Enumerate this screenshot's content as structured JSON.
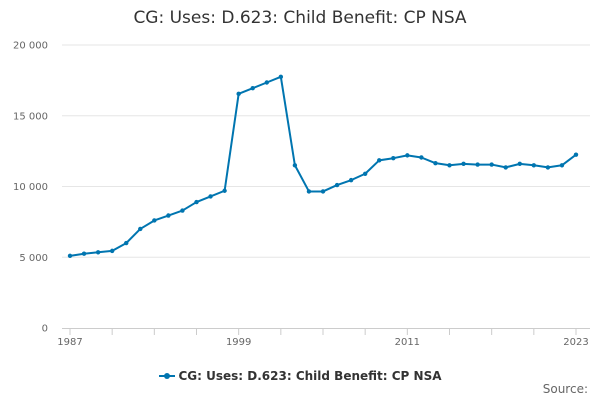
{
  "chart_data": {
    "type": "line",
    "title": "CG: Uses: D.623: Child Benefit: CP NSA",
    "xlabel": "",
    "ylabel": "",
    "x": [
      1987,
      1988,
      1989,
      1990,
      1991,
      1992,
      1993,
      1994,
      1995,
      1996,
      1997,
      1998,
      1999,
      2000,
      2001,
      2002,
      2003,
      2004,
      2005,
      2006,
      2007,
      2008,
      2009,
      2010,
      2011,
      2012,
      2013,
      2014,
      2015,
      2016,
      2017,
      2018,
      2019,
      2020,
      2021,
      2022,
      2023
    ],
    "series": [
      {
        "name": "CG: Uses: D.623: Child Benefit: CP NSA",
        "color": "#0075b0",
        "values": [
          5100,
          5250,
          5350,
          5450,
          6000,
          7000,
          7600,
          7950,
          8300,
          8900,
          9300,
          9700,
          16550,
          16950,
          17350,
          17750,
          11500,
          9650,
          9650,
          10100,
          10450,
          10900,
          11850,
          12000,
          12200,
          12050,
          11650,
          11500,
          11600,
          11550,
          11550,
          11350,
          11600,
          11500,
          11350,
          11500,
          12250
        ]
      }
    ],
    "xticks": [
      "1987",
      "1999",
      "2011",
      "2023"
    ],
    "ylim": [
      0,
      20000
    ],
    "yticks": [
      0,
      5000,
      10000,
      15000,
      20000
    ],
    "ytick_labels": [
      "0",
      "5 000",
      "10 000",
      "15 000",
      "20 000"
    ],
    "grid": true,
    "legend_position": "bottom-center"
  },
  "legend_label": "CG: Uses: D.623: Child Benefit: CP NSA",
  "source_label": "Source:"
}
